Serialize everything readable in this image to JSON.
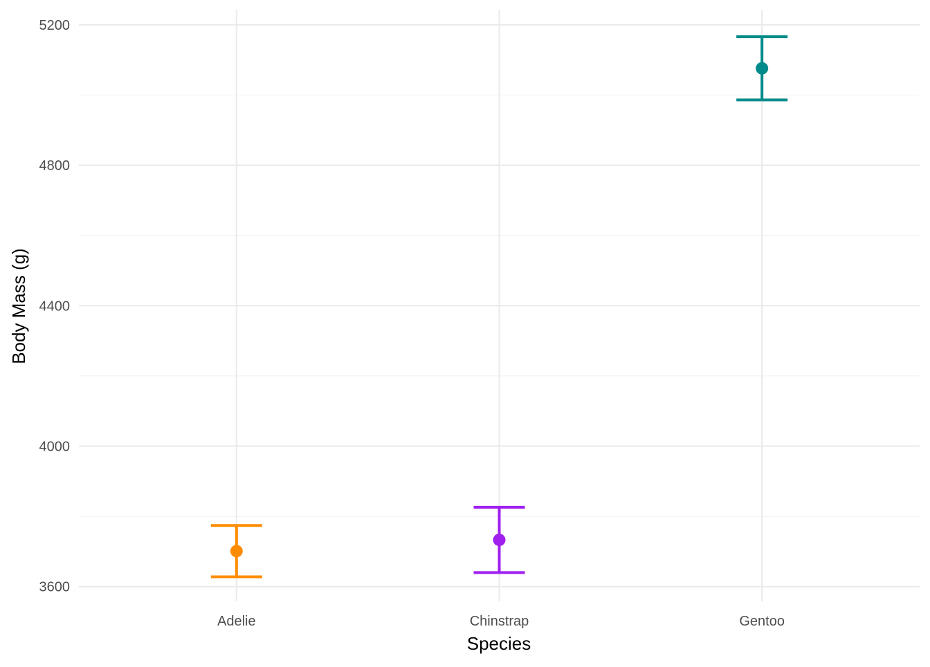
{
  "chart_data": {
    "type": "errorbar",
    "xlabel": "Species",
    "ylabel": "Body Mass (g)",
    "categories": [
      "Adelie",
      "Chinstrap",
      "Gentoo"
    ],
    "mean": [
      3701,
      3733,
      5076
    ],
    "lower": [
      3628,
      3640,
      4986
    ],
    "upper": [
      3774,
      3826,
      5166
    ],
    "colors": [
      "#FF8C00",
      "#A020F0",
      "#008B8B"
    ],
    "ylim": [
      3558,
      5243
    ],
    "yticks": [
      3600,
      4000,
      4400,
      4800,
      5200
    ],
    "yticks_minor": [
      3800,
      4200,
      4600,
      5000
    ],
    "grid": true,
    "legend": "none"
  }
}
